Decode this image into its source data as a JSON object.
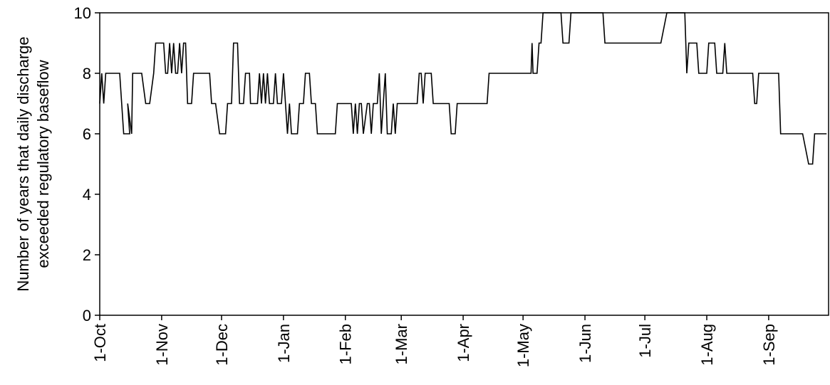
{
  "chart_data": {
    "type": "line",
    "title": "",
    "xlabel": "",
    "ylabel_lines": [
      "Number of years that daily discharge",
      "exceeded regulatory baseflow"
    ],
    "ylim": [
      0,
      10
    ],
    "yticks": [
      0,
      2,
      4,
      6,
      8,
      10
    ],
    "xlim_days": [
      0,
      365
    ],
    "xtick_labels": [
      "1-Oct",
      "1-Nov",
      "1-Dec",
      "1-Jan",
      "1-Feb",
      "1-Mar",
      "1-Apr",
      "1-May",
      "1-Jun",
      "1-Jul",
      "1-Aug",
      "1-Sep"
    ],
    "xtick_days": [
      0,
      31,
      61,
      92,
      123,
      151,
      182,
      212,
      243,
      273,
      304,
      335
    ],
    "grid": false,
    "legend": "none",
    "series": [
      {
        "color": "#000000",
        "points": [
          [
            0,
            7
          ],
          [
            1,
            8
          ],
          [
            2,
            7
          ],
          [
            3,
            8
          ],
          [
            10,
            8
          ],
          [
            12,
            6
          ],
          [
            15,
            6
          ],
          [
            14,
            7
          ],
          [
            16,
            6
          ],
          [
            16.5,
            8
          ],
          [
            21,
            8
          ],
          [
            23,
            7
          ],
          [
            25,
            7
          ],
          [
            27,
            8
          ],
          [
            28,
            9
          ],
          [
            32,
            9
          ],
          [
            33,
            8
          ],
          [
            34,
            8
          ],
          [
            35,
            9
          ],
          [
            36,
            8
          ],
          [
            37,
            9
          ],
          [
            38,
            8
          ],
          [
            39,
            8
          ],
          [
            40,
            9
          ],
          [
            41,
            8
          ],
          [
            42,
            9
          ],
          [
            43,
            9
          ],
          [
            44,
            7
          ],
          [
            46,
            7
          ],
          [
            47,
            8
          ],
          [
            55,
            8
          ],
          [
            56,
            7
          ],
          [
            58,
            7
          ],
          [
            60,
            6
          ],
          [
            63,
            6
          ],
          [
            64,
            7
          ],
          [
            66,
            7
          ],
          [
            67,
            9
          ],
          [
            69,
            9
          ],
          [
            70,
            7
          ],
          [
            72,
            7
          ],
          [
            73,
            8
          ],
          [
            75,
            8
          ],
          [
            75.5,
            7
          ],
          [
            79,
            7
          ],
          [
            80,
            8
          ],
          [
            81,
            7
          ],
          [
            82,
            8
          ],
          [
            83,
            7
          ],
          [
            84,
            8
          ],
          [
            85,
            7
          ],
          [
            87,
            7
          ],
          [
            88,
            8
          ],
          [
            89,
            7
          ],
          [
            91,
            7
          ],
          [
            92,
            8
          ],
          [
            93,
            7
          ],
          [
            94,
            6
          ],
          [
            95,
            7
          ],
          [
            96,
            6
          ],
          [
            99,
            6
          ],
          [
            100,
            7
          ],
          [
            102,
            7
          ],
          [
            103,
            8
          ],
          [
            105,
            8
          ],
          [
            106,
            7
          ],
          [
            108,
            7
          ],
          [
            109,
            6
          ],
          [
            118,
            6
          ],
          [
            119,
            7
          ],
          [
            126,
            7
          ],
          [
            127,
            6
          ],
          [
            128,
            7
          ],
          [
            129,
            6
          ],
          [
            130,
            7
          ],
          [
            131,
            7
          ],
          [
            132,
            6
          ],
          [
            134,
            7
          ],
          [
            135,
            7
          ],
          [
            136,
            6
          ],
          [
            137,
            7
          ],
          [
            139,
            7
          ],
          [
            140,
            8
          ],
          [
            141,
            6
          ],
          [
            142,
            7
          ],
          [
            143,
            8
          ],
          [
            144,
            6
          ],
          [
            145,
            6
          ],
          [
            146,
            6
          ],
          [
            147,
            7
          ],
          [
            148,
            6
          ],
          [
            149,
            7
          ],
          [
            152,
            7
          ],
          [
            159,
            7
          ],
          [
            160,
            8
          ],
          [
            161,
            8
          ],
          [
            162,
            7
          ],
          [
            163,
            8
          ],
          [
            166,
            8
          ],
          [
            167,
            7
          ],
          [
            175,
            7
          ],
          [
            176,
            6
          ],
          [
            178,
            6
          ],
          [
            179,
            7
          ],
          [
            194,
            7
          ],
          [
            195,
            8
          ],
          [
            216,
            8
          ],
          [
            216.5,
            9
          ],
          [
            217,
            8
          ],
          [
            219,
            8
          ],
          [
            220,
            9
          ],
          [
            221,
            9
          ],
          [
            222,
            10
          ],
          [
            231,
            10
          ],
          [
            232,
            9
          ],
          [
            235,
            9
          ],
          [
            236,
            10
          ],
          [
            241,
            10
          ],
          [
            252,
            10
          ],
          [
            253,
            9
          ],
          [
            281,
            9
          ],
          [
            284,
            10
          ],
          [
            293,
            10
          ],
          [
            294,
            8
          ],
          [
            295,
            9
          ],
          [
            299,
            9
          ],
          [
            300,
            8
          ],
          [
            303,
            8
          ],
          [
            304,
            8
          ],
          [
            305,
            9
          ],
          [
            308,
            9
          ],
          [
            309,
            8
          ],
          [
            312,
            8
          ],
          [
            313,
            9
          ],
          [
            314,
            8
          ],
          [
            327,
            8
          ],
          [
            328,
            7
          ],
          [
            329,
            7
          ],
          [
            330,
            8
          ],
          [
            340,
            8
          ],
          [
            341,
            6
          ],
          [
            348,
            6
          ],
          [
            349,
            6
          ],
          [
            352,
            6
          ],
          [
            355,
            5
          ],
          [
            357,
            5
          ],
          [
            358,
            6
          ],
          [
            364,
            6
          ]
        ]
      }
    ]
  }
}
